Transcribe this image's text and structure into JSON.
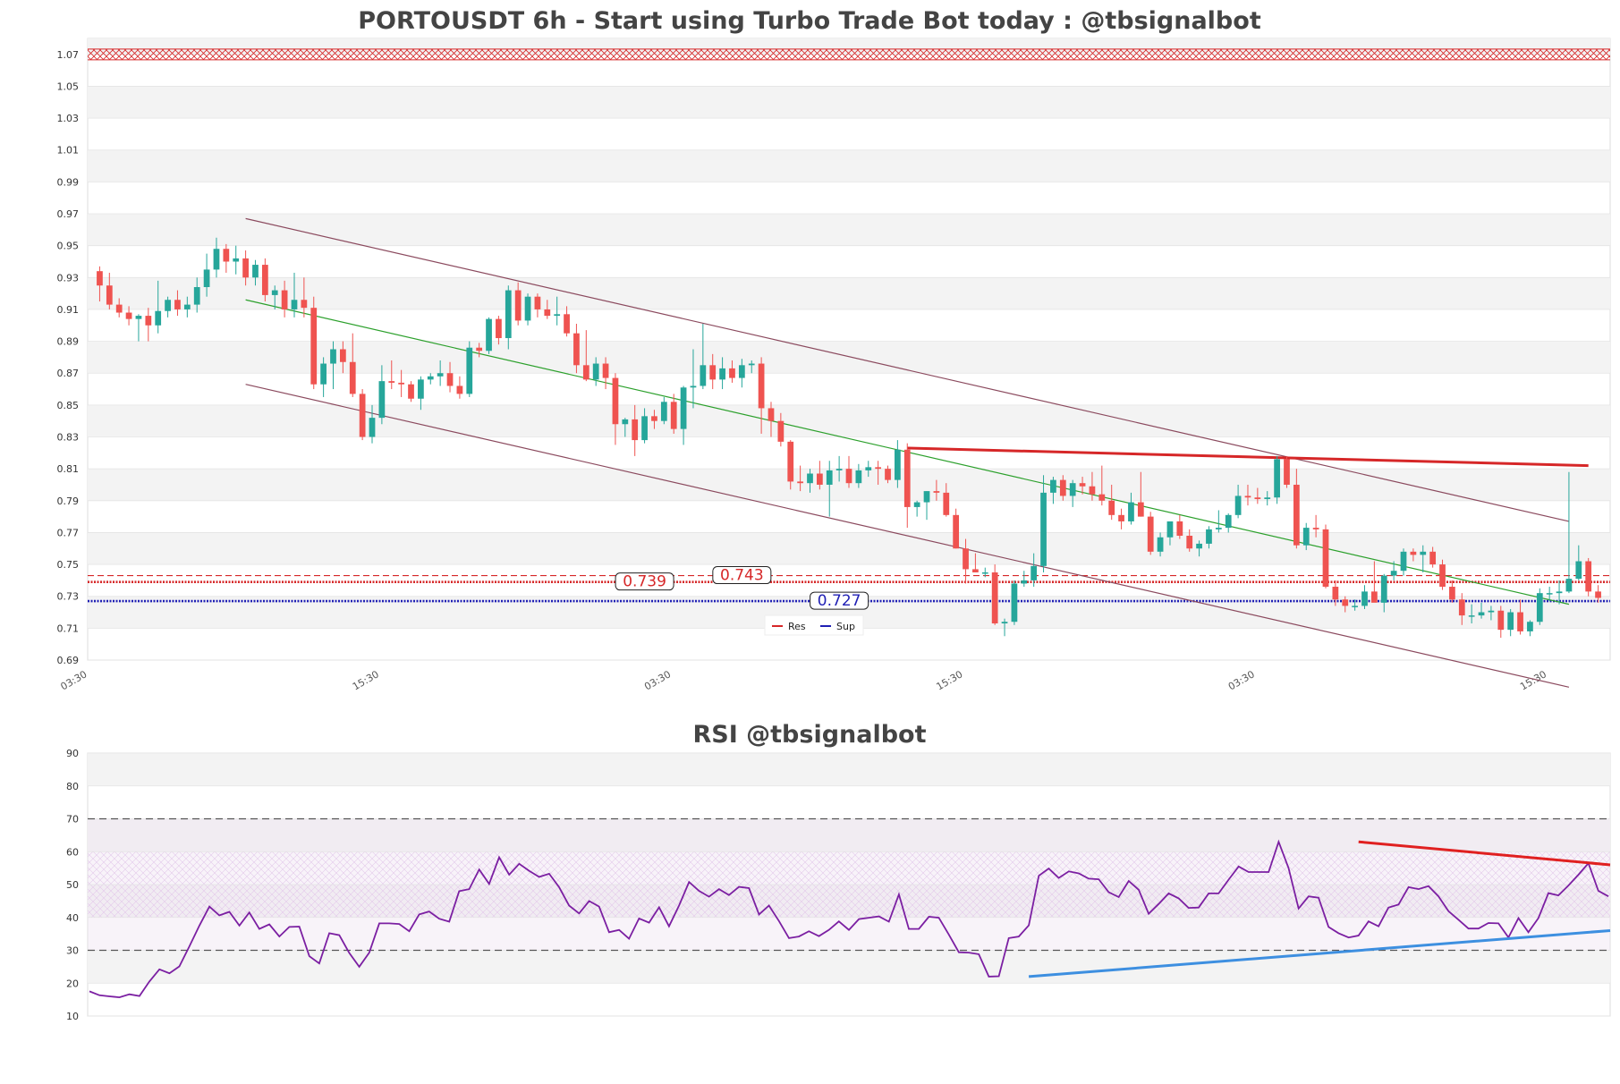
{
  "colors": {
    "up": "#26a69a",
    "down": "#ef5350",
    "res": "#d62728",
    "sup": "#1f1fb4",
    "mid_channel": "#2ca02c",
    "channel": "#8b4a5e",
    "rsi": "#7b1fa2",
    "rsi_trend_up": "#3d8fe0",
    "rsi_trend_down": "#e02020"
  },
  "chart_data": [
    {
      "type": "candlestick",
      "title": "PORTOUSDT 6h - Start using Turbo Trade Bot today : @tbsignalbot",
      "ylim": [
        0.69,
        1.08
      ],
      "y_ticks": [
        "0.69",
        "0.71",
        "0.73",
        "0.75",
        "0.77",
        "0.79",
        "0.81",
        "0.83",
        "0.85",
        "0.87",
        "0.89",
        "0.91",
        "0.93",
        "0.95",
        "0.97",
        "0.99",
        "1.01",
        "1.03",
        "1.05",
        "1.07"
      ],
      "x_ticks": [
        {
          "index": 0,
          "label": "03:30"
        },
        {
          "index": 30,
          "label": "15:30"
        },
        {
          "index": 60,
          "label": "03:30"
        },
        {
          "index": 90,
          "label": "15:30"
        },
        {
          "index": 120,
          "label": "03:30"
        },
        {
          "index": 150,
          "label": "15:30"
        }
      ],
      "legend": {
        "position": "bottom-center",
        "entries": [
          "Res",
          "Sup"
        ]
      },
      "hlines": [
        {
          "name": "Res",
          "value": 0.743,
          "label": "0.743",
          "style": "dashed"
        },
        {
          "name": "Res",
          "value": 0.739,
          "label": "0.739",
          "style": "dotted"
        },
        {
          "name": "Sup",
          "value": 0.727,
          "label": "0.727",
          "style": "dotted"
        },
        {
          "name": "Top",
          "value": 1.07,
          "style": "hatched"
        }
      ],
      "trendlines": [
        {
          "name": "upper-channel",
          "from": [
            15,
            0.967
          ],
          "to": [
            151,
            0.777
          ]
        },
        {
          "name": "mid-channel",
          "from": [
            15,
            0.916
          ],
          "to": [
            151,
            0.725
          ]
        },
        {
          "name": "lower-channel",
          "from": [
            15,
            0.863
          ],
          "to": [
            151,
            0.673
          ]
        },
        {
          "name": "resistance-trend",
          "from": [
            83,
            0.823
          ],
          "to": [
            153,
            0.812
          ]
        }
      ],
      "ohlc": [
        [
          0.934,
          0.937,
          0.915,
          0.925
        ],
        [
          0.925,
          0.933,
          0.91,
          0.913
        ],
        [
          0.913,
          0.917,
          0.905,
          0.908
        ],
        [
          0.908,
          0.912,
          0.9,
          0.904
        ],
        [
          0.904,
          0.907,
          0.89,
          0.906
        ],
        [
          0.906,
          0.911,
          0.89,
          0.9
        ],
        [
          0.9,
          0.928,
          0.895,
          0.909
        ],
        [
          0.909,
          0.918,
          0.905,
          0.916
        ],
        [
          0.916,
          0.922,
          0.906,
          0.91
        ],
        [
          0.91,
          0.918,
          0.905,
          0.913
        ],
        [
          0.913,
          0.93,
          0.908,
          0.924
        ],
        [
          0.924,
          0.945,
          0.918,
          0.935
        ],
        [
          0.935,
          0.955,
          0.93,
          0.948
        ],
        [
          0.948,
          0.951,
          0.933,
          0.94
        ],
        [
          0.94,
          0.95,
          0.932,
          0.942
        ],
        [
          0.942,
          0.947,
          0.925,
          0.93
        ],
        [
          0.93,
          0.941,
          0.925,
          0.938
        ],
        [
          0.938,
          0.942,
          0.915,
          0.919
        ],
        [
          0.919,
          0.925,
          0.91,
          0.922
        ],
        [
          0.922,
          0.928,
          0.905,
          0.91
        ],
        [
          0.91,
          0.933,
          0.905,
          0.916
        ],
        [
          0.916,
          0.93,
          0.905,
          0.911
        ],
        [
          0.911,
          0.918,
          0.86,
          0.863
        ],
        [
          0.863,
          0.88,
          0.855,
          0.876
        ],
        [
          0.876,
          0.89,
          0.86,
          0.885
        ],
        [
          0.885,
          0.89,
          0.87,
          0.877
        ],
        [
          0.877,
          0.895,
          0.855,
          0.857
        ],
        [
          0.857,
          0.86,
          0.828,
          0.83
        ],
        [
          0.83,
          0.85,
          0.826,
          0.842
        ],
        [
          0.842,
          0.875,
          0.838,
          0.865
        ],
        [
          0.865,
          0.878,
          0.86,
          0.864
        ],
        [
          0.864,
          0.872,
          0.855,
          0.863
        ],
        [
          0.863,
          0.865,
          0.852,
          0.854
        ],
        [
          0.854,
          0.868,
          0.847,
          0.866
        ],
        [
          0.866,
          0.87,
          0.863,
          0.868
        ],
        [
          0.868,
          0.878,
          0.862,
          0.87
        ],
        [
          0.87,
          0.877,
          0.858,
          0.862
        ],
        [
          0.862,
          0.868,
          0.854,
          0.857
        ],
        [
          0.857,
          0.89,
          0.855,
          0.886
        ],
        [
          0.886,
          0.889,
          0.88,
          0.884
        ],
        [
          0.884,
          0.905,
          0.882,
          0.904
        ],
        [
          0.904,
          0.906,
          0.888,
          0.892
        ],
        [
          0.892,
          0.925,
          0.885,
          0.922
        ],
        [
          0.922,
          0.927,
          0.9,
          0.903
        ],
        [
          0.903,
          0.92,
          0.9,
          0.918
        ],
        [
          0.918,
          0.92,
          0.905,
          0.91
        ],
        [
          0.91,
          0.916,
          0.904,
          0.906
        ],
        [
          0.906,
          0.918,
          0.9,
          0.907
        ],
        [
          0.907,
          0.912,
          0.893,
          0.895
        ],
        [
          0.895,
          0.901,
          0.87,
          0.875
        ],
        [
          0.875,
          0.897,
          0.865,
          0.866
        ],
        [
          0.866,
          0.88,
          0.862,
          0.876
        ],
        [
          0.876,
          0.88,
          0.86,
          0.867
        ],
        [
          0.867,
          0.87,
          0.825,
          0.838
        ],
        [
          0.838,
          0.842,
          0.83,
          0.841
        ],
        [
          0.841,
          0.85,
          0.818,
          0.828
        ],
        [
          0.828,
          0.848,
          0.826,
          0.843
        ],
        [
          0.843,
          0.847,
          0.835,
          0.84
        ],
        [
          0.84,
          0.855,
          0.838,
          0.852
        ],
        [
          0.852,
          0.857,
          0.832,
          0.835
        ],
        [
          0.835,
          0.862,
          0.825,
          0.861
        ],
        [
          0.861,
          0.885,
          0.848,
          0.862
        ],
        [
          0.862,
          0.901,
          0.86,
          0.875
        ],
        [
          0.875,
          0.882,
          0.86,
          0.866
        ],
        [
          0.866,
          0.88,
          0.86,
          0.873
        ],
        [
          0.873,
          0.878,
          0.864,
          0.867
        ],
        [
          0.867,
          0.879,
          0.861,
          0.875
        ],
        [
          0.875,
          0.878,
          0.87,
          0.876
        ],
        [
          0.876,
          0.88,
          0.832,
          0.848
        ],
        [
          0.848,
          0.852,
          0.83,
          0.84
        ],
        [
          0.84,
          0.845,
          0.824,
          0.827
        ],
        [
          0.827,
          0.828,
          0.797,
          0.802
        ],
        [
          0.802,
          0.812,
          0.796,
          0.801
        ],
        [
          0.801,
          0.81,
          0.795,
          0.807
        ],
        [
          0.807,
          0.815,
          0.797,
          0.8
        ],
        [
          0.8,
          0.815,
          0.78,
          0.809
        ],
        [
          0.809,
          0.818,
          0.802,
          0.81
        ],
        [
          0.81,
          0.818,
          0.798,
          0.801
        ],
        [
          0.801,
          0.813,
          0.798,
          0.809
        ],
        [
          0.809,
          0.815,
          0.805,
          0.811
        ],
        [
          0.811,
          0.815,
          0.8,
          0.81
        ],
        [
          0.81,
          0.812,
          0.801,
          0.803
        ],
        [
          0.803,
          0.828,
          0.798,
          0.822
        ],
        [
          0.822,
          0.826,
          0.773,
          0.786
        ],
        [
          0.786,
          0.79,
          0.78,
          0.789
        ],
        [
          0.789,
          0.796,
          0.778,
          0.796
        ],
        [
          0.796,
          0.803,
          0.79,
          0.795
        ],
        [
          0.795,
          0.801,
          0.78,
          0.781
        ],
        [
          0.781,
          0.785,
          0.76,
          0.76
        ],
        [
          0.76,
          0.766,
          0.738,
          0.747
        ],
        [
          0.747,
          0.757,
          0.745,
          0.745
        ],
        [
          0.745,
          0.748,
          0.742,
          0.745
        ],
        [
          0.745,
          0.75,
          0.712,
          0.713
        ],
        [
          0.713,
          0.716,
          0.705,
          0.714
        ],
        [
          0.714,
          0.74,
          0.712,
          0.738
        ],
        [
          0.738,
          0.746,
          0.736,
          0.74
        ],
        [
          0.74,
          0.757,
          0.736,
          0.749
        ],
        [
          0.749,
          0.806,
          0.745,
          0.795
        ],
        [
          0.795,
          0.805,
          0.788,
          0.803
        ],
        [
          0.803,
          0.806,
          0.79,
          0.793
        ],
        [
          0.793,
          0.803,
          0.786,
          0.801
        ],
        [
          0.801,
          0.805,
          0.794,
          0.799
        ],
        [
          0.799,
          0.808,
          0.79,
          0.794
        ],
        [
          0.794,
          0.812,
          0.787,
          0.79
        ],
        [
          0.79,
          0.8,
          0.778,
          0.781
        ],
        [
          0.781,
          0.785,
          0.772,
          0.777
        ],
        [
          0.777,
          0.795,
          0.775,
          0.789
        ],
        [
          0.789,
          0.808,
          0.78,
          0.78
        ],
        [
          0.78,
          0.783,
          0.756,
          0.758
        ],
        [
          0.758,
          0.77,
          0.755,
          0.767
        ],
        [
          0.767,
          0.776,
          0.762,
          0.777
        ],
        [
          0.777,
          0.781,
          0.766,
          0.768
        ],
        [
          0.768,
          0.772,
          0.758,
          0.76
        ],
        [
          0.76,
          0.765,
          0.755,
          0.763
        ],
        [
          0.763,
          0.774,
          0.76,
          0.772
        ],
        [
          0.772,
          0.784,
          0.77,
          0.773
        ],
        [
          0.773,
          0.782,
          0.77,
          0.781
        ],
        [
          0.781,
          0.8,
          0.779,
          0.793
        ],
        [
          0.793,
          0.8,
          0.787,
          0.792
        ],
        [
          0.792,
          0.798,
          0.788,
          0.791
        ],
        [
          0.791,
          0.796,
          0.787,
          0.792
        ],
        [
          0.792,
          0.818,
          0.788,
          0.816
        ],
        [
          0.816,
          0.818,
          0.798,
          0.8
        ],
        [
          0.8,
          0.81,
          0.76,
          0.762
        ],
        [
          0.762,
          0.776,
          0.759,
          0.773
        ],
        [
          0.773,
          0.781,
          0.767,
          0.772
        ],
        [
          0.772,
          0.775,
          0.735,
          0.736
        ],
        [
          0.736,
          0.74,
          0.724,
          0.728
        ],
        [
          0.728,
          0.73,
          0.72,
          0.724
        ],
        [
          0.724,
          0.728,
          0.721,
          0.724
        ],
        [
          0.724,
          0.737,
          0.722,
          0.733
        ],
        [
          0.733,
          0.752,
          0.728,
          0.726
        ],
        [
          0.726,
          0.744,
          0.72,
          0.743
        ],
        [
          0.743,
          0.752,
          0.74,
          0.746
        ],
        [
          0.746,
          0.76,
          0.743,
          0.758
        ],
        [
          0.758,
          0.76,
          0.752,
          0.756
        ],
        [
          0.756,
          0.762,
          0.745,
          0.758
        ],
        [
          0.758,
          0.761,
          0.748,
          0.75
        ],
        [
          0.75,
          0.753,
          0.734,
          0.736
        ],
        [
          0.736,
          0.74,
          0.726,
          0.728
        ],
        [
          0.728,
          0.732,
          0.712,
          0.718
        ],
        [
          0.718,
          0.725,
          0.713,
          0.718
        ],
        [
          0.718,
          0.726,
          0.716,
          0.72
        ],
        [
          0.72,
          0.724,
          0.715,
          0.721
        ],
        [
          0.721,
          0.724,
          0.704,
          0.709
        ],
        [
          0.709,
          0.722,
          0.705,
          0.72
        ],
        [
          0.72,
          0.728,
          0.706,
          0.708
        ],
        [
          0.708,
          0.715,
          0.705,
          0.714
        ],
        [
          0.714,
          0.735,
          0.712,
          0.732
        ],
        [
          0.732,
          0.736,
          0.727,
          0.732
        ],
        [
          0.732,
          0.74,
          0.725,
          0.733
        ],
        [
          0.733,
          0.808,
          0.732,
          0.741
        ],
        [
          0.741,
          0.762,
          0.74,
          0.752
        ],
        [
          0.752,
          0.754,
          0.73,
          0.733
        ],
        [
          0.733,
          0.737,
          0.726,
          0.729
        ]
      ]
    },
    {
      "type": "line",
      "title": "RSI @tbsignalbot",
      "ylim": [
        10,
        90
      ],
      "y_ticks": [
        "10",
        "20",
        "30",
        "40",
        "50",
        "60",
        "70",
        "80",
        "90"
      ],
      "hlines": [
        30,
        70
      ],
      "bands": [
        [
          40,
          60
        ],
        [
          30,
          70
        ]
      ],
      "trendlines": [
        {
          "name": "rsi-support",
          "from": [
            94,
            22
          ],
          "to": [
            155,
            36
          ]
        },
        {
          "name": "rsi-resistance",
          "from": [
            127,
            63
          ],
          "to": [
            155,
            56
          ]
        }
      ],
      "values": [
        17.5,
        16.3,
        16.0,
        15.7,
        16.6,
        16.1,
        20.5,
        24.2,
        23.0,
        25.1,
        31.2,
        37.5,
        43.3,
        40.6,
        41.7,
        37.5,
        41.5,
        36.5,
        37.9,
        34.2,
        37.1,
        37.2,
        28.2,
        26.0,
        35.2,
        34.6,
        29.2,
        25.0,
        29.3,
        38.2,
        38.2,
        38.0,
        35.8,
        40.9,
        41.8,
        39.6,
        38.7,
        48.0,
        48.6,
        54.6,
        50.2,
        58.3,
        53.0,
        56.3,
        54.2,
        52.3,
        53.3,
        49.2,
        43.6,
        41.2,
        45.0,
        43.3,
        35.5,
        36.2,
        33.5,
        39.7,
        38.4,
        43.1,
        37.3,
        43.6,
        50.8,
        48.1,
        46.3,
        48.6,
        46.8,
        49.3,
        48.9,
        40.9,
        43.6,
        38.9,
        33.7,
        34.2,
        35.8,
        34.3,
        36.2,
        38.8,
        36.2,
        39.5,
        39.9,
        40.3,
        38.7,
        47.0,
        36.5,
        36.5,
        40.2,
        39.9,
        34.8,
        29.4,
        29.3,
        28.8,
        22.0,
        22.1,
        33.7,
        34.2,
        37.6,
        52.7,
        54.9,
        52.0,
        54.0,
        53.4,
        51.8,
        51.6,
        47.7,
        46.2,
        51.1,
        48.4,
        41.1,
        44.1,
        47.3,
        45.8,
        42.9,
        43.0,
        47.3,
        47.3,
        51.5,
        55.5,
        53.8,
        53.8,
        53.8,
        63.0,
        55.0,
        42.7,
        46.4,
        46.0,
        37.1,
        35.2,
        33.9,
        34.5,
        38.8,
        37.3,
        43.0,
        43.9,
        49.2,
        48.6,
        49.5,
        46.4,
        41.9,
        39.3,
        36.6,
        36.6,
        38.3,
        38.2,
        33.9,
        39.8,
        35.5,
        39.8,
        47.4,
        46.7,
        49.7,
        53.0,
        56.5,
        48.1,
        46.4
      ]
    }
  ]
}
